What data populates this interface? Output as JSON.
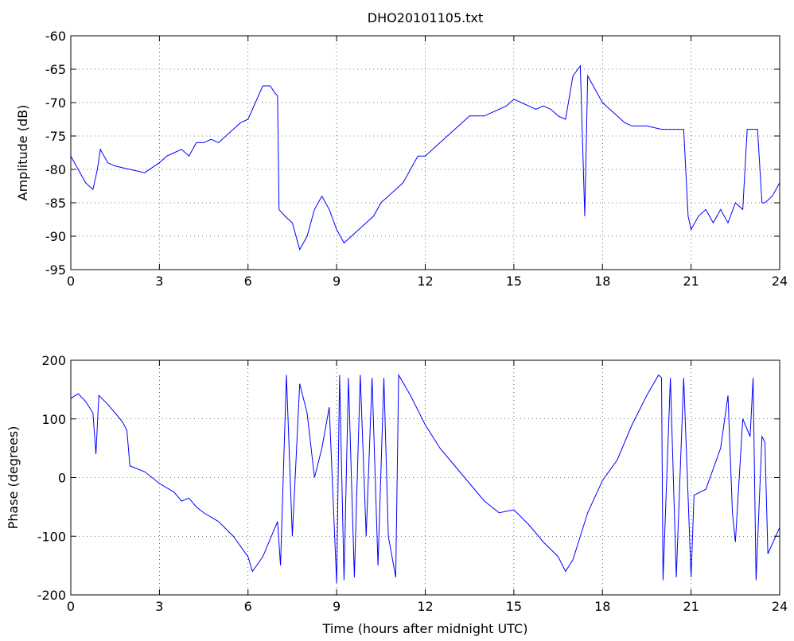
{
  "chart_data": [
    {
      "type": "line",
      "title": "DHO20101105.txt",
      "ylabel": "Amplitude (dB)",
      "color": "#0000ff",
      "grid": true,
      "xlim": [
        0,
        24
      ],
      "xticks": [
        0,
        3,
        6,
        9,
        12,
        15,
        18,
        21,
        24
      ],
      "ylim": [
        -95,
        -60
      ],
      "yticks": [
        -95,
        -90,
        -85,
        -80,
        -75,
        -70,
        -65,
        -60
      ],
      "x": [
        0,
        0.25,
        0.5,
        0.75,
        0.9,
        1.0,
        1.25,
        1.5,
        2,
        2.5,
        3,
        3.25,
        3.5,
        3.75,
        4,
        4.25,
        4.5,
        4.75,
        5,
        5.25,
        5.5,
        5.75,
        6,
        6.25,
        6.5,
        6.75,
        6.9,
        7.0,
        7.05,
        7.25,
        7.5,
        7.75,
        8,
        8.25,
        8.5,
        8.75,
        9,
        9.25,
        9.5,
        9.75,
        10,
        10.25,
        10.5,
        10.75,
        11,
        11.25,
        11.5,
        11.75,
        12,
        12.25,
        12.5,
        12.75,
        13,
        13.25,
        13.5,
        13.75,
        14,
        14.25,
        14.5,
        14.75,
        15,
        15.25,
        15.5,
        15.75,
        16,
        16.25,
        16.5,
        16.75,
        17,
        17.25,
        17.4,
        17.5,
        17.75,
        18,
        18.25,
        18.5,
        18.75,
        19,
        19.5,
        20,
        20.5,
        20.75,
        20.9,
        21,
        21.25,
        21.5,
        21.75,
        22,
        22.25,
        22.5,
        22.75,
        22.9,
        23,
        23.25,
        23.4,
        23.5,
        23.75,
        24
      ],
      "values": [
        -78,
        -80,
        -82,
        -83,
        -80,
        -77,
        -79,
        -79.5,
        -80,
        -80.5,
        -79,
        -78,
        -77.5,
        -77,
        -78,
        -76,
        -76,
        -75.5,
        -76,
        -75,
        -74,
        -73,
        -72.5,
        -70,
        -67.5,
        -67.5,
        -68.5,
        -69,
        -86,
        -87,
        -88,
        -92,
        -90,
        -86,
        -84,
        -86,
        -89,
        -91,
        -90,
        -89,
        -88,
        -87,
        -85,
        -84,
        -83,
        -82,
        -80,
        -78,
        -78,
        -77,
        -76,
        -75,
        -74,
        -73,
        -72,
        -72,
        -72,
        -71.5,
        -71,
        -70.5,
        -69.5,
        -70,
        -70.5,
        -71,
        -70.5,
        -71,
        -72,
        -72.5,
        -66,
        -64.5,
        -87,
        -66,
        -68,
        -70,
        -71,
        -72,
        -73,
        -73.5,
        -73.5,
        -74,
        -74,
        -74,
        -87,
        -89,
        -87,
        -86,
        -88,
        -86,
        -88,
        -85,
        -86,
        -74,
        -74,
        -74,
        -85,
        -85,
        -84,
        -82
      ]
    },
    {
      "type": "line",
      "xlabel": "Time (hours after midnight UTC)",
      "ylabel": "Phase (degrees)",
      "color": "#0000ff",
      "grid": true,
      "xlim": [
        0,
        24
      ],
      "xticks": [
        0,
        3,
        6,
        9,
        12,
        15,
        18,
        21,
        24
      ],
      "ylim": [
        -200,
        200
      ],
      "yticks": [
        -200,
        -100,
        0,
        100,
        200
      ],
      "x": [
        0,
        0.25,
        0.5,
        0.75,
        0.85,
        0.95,
        1.25,
        1.5,
        1.75,
        1.9,
        2.0,
        2.5,
        3,
        3.5,
        3.75,
        4,
        4.25,
        4.5,
        5,
        5.5,
        6,
        6.15,
        6.5,
        7,
        7.1,
        7.3,
        7.5,
        7.75,
        8,
        8.25,
        8.5,
        8.75,
        9,
        9.1,
        9.25,
        9.4,
        9.6,
        9.8,
        10,
        10.2,
        10.4,
        10.6,
        10.75,
        11,
        11.1,
        11.5,
        12,
        12.5,
        13,
        13.5,
        14,
        14.5,
        15,
        15.5,
        16,
        16.5,
        16.75,
        17,
        17.5,
        18,
        18.5,
        19,
        19.5,
        19.9,
        20,
        20.05,
        20.3,
        20.5,
        20.75,
        21,
        21.1,
        21.5,
        22,
        22.25,
        22.4,
        22.5,
        22.75,
        23,
        23.1,
        23.2,
        23.4,
        23.5,
        23.6,
        24
      ],
      "values": [
        135,
        143,
        130,
        110,
        40,
        140,
        125,
        110,
        95,
        80,
        20,
        10,
        -10,
        -25,
        -40,
        -35,
        -50,
        -60,
        -75,
        -100,
        -135,
        -160,
        -135,
        -75,
        -150,
        175,
        -100,
        160,
        110,
        0,
        50,
        120,
        -180,
        175,
        -175,
        170,
        -170,
        175,
        -100,
        170,
        -150,
        170,
        -100,
        -170,
        175,
        140,
        90,
        50,
        20,
        -10,
        -40,
        -60,
        -55,
        -80,
        -110,
        -135,
        -160,
        -140,
        -60,
        -5,
        30,
        90,
        140,
        175,
        170,
        -175,
        170,
        -170,
        170,
        -170,
        -30,
        -20,
        50,
        140,
        -60,
        -110,
        100,
        70,
        170,
        -175,
        70,
        60,
        -130,
        -85
      ]
    }
  ]
}
